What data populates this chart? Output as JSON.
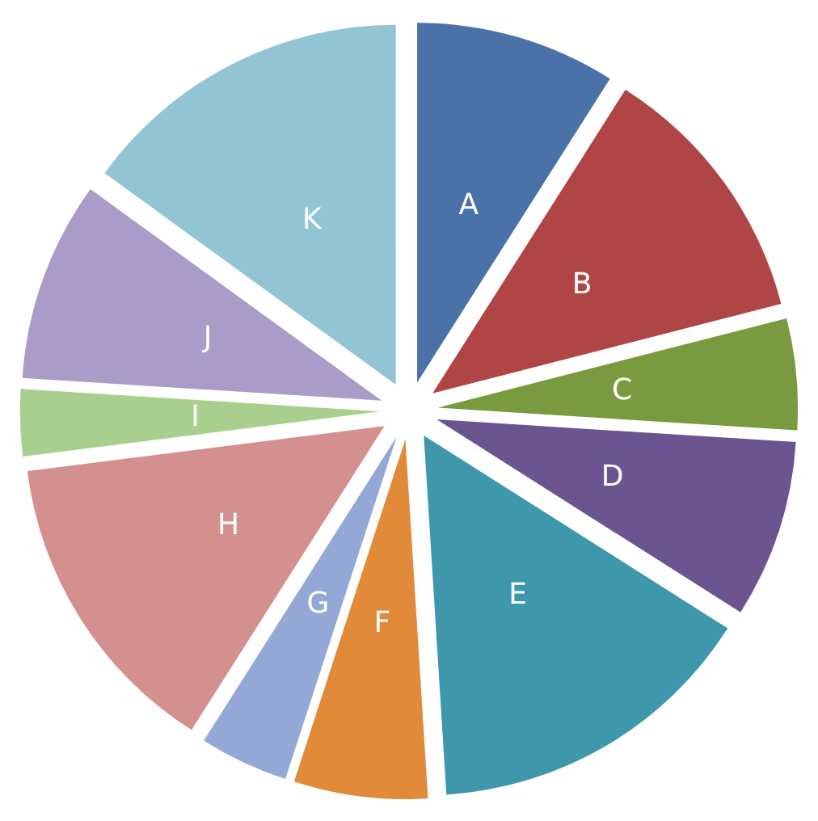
{
  "chart_data": {
    "type": "pie",
    "categories": [
      "A",
      "B",
      "C",
      "D",
      "E",
      "F",
      "G",
      "H",
      "I",
      "J",
      "K"
    ],
    "values": [
      9,
      12,
      5,
      8,
      15,
      6,
      4,
      14,
      3,
      9,
      15
    ],
    "colors": [
      "#4a72a8",
      "#b04545",
      "#7a9a40",
      "#6b548f",
      "#3f97ab",
      "#e08a3a",
      "#93a8d6",
      "#d48f8f",
      "#a9cf8e",
      "#a99cc9",
      "#92c4d4"
    ]
  }
}
